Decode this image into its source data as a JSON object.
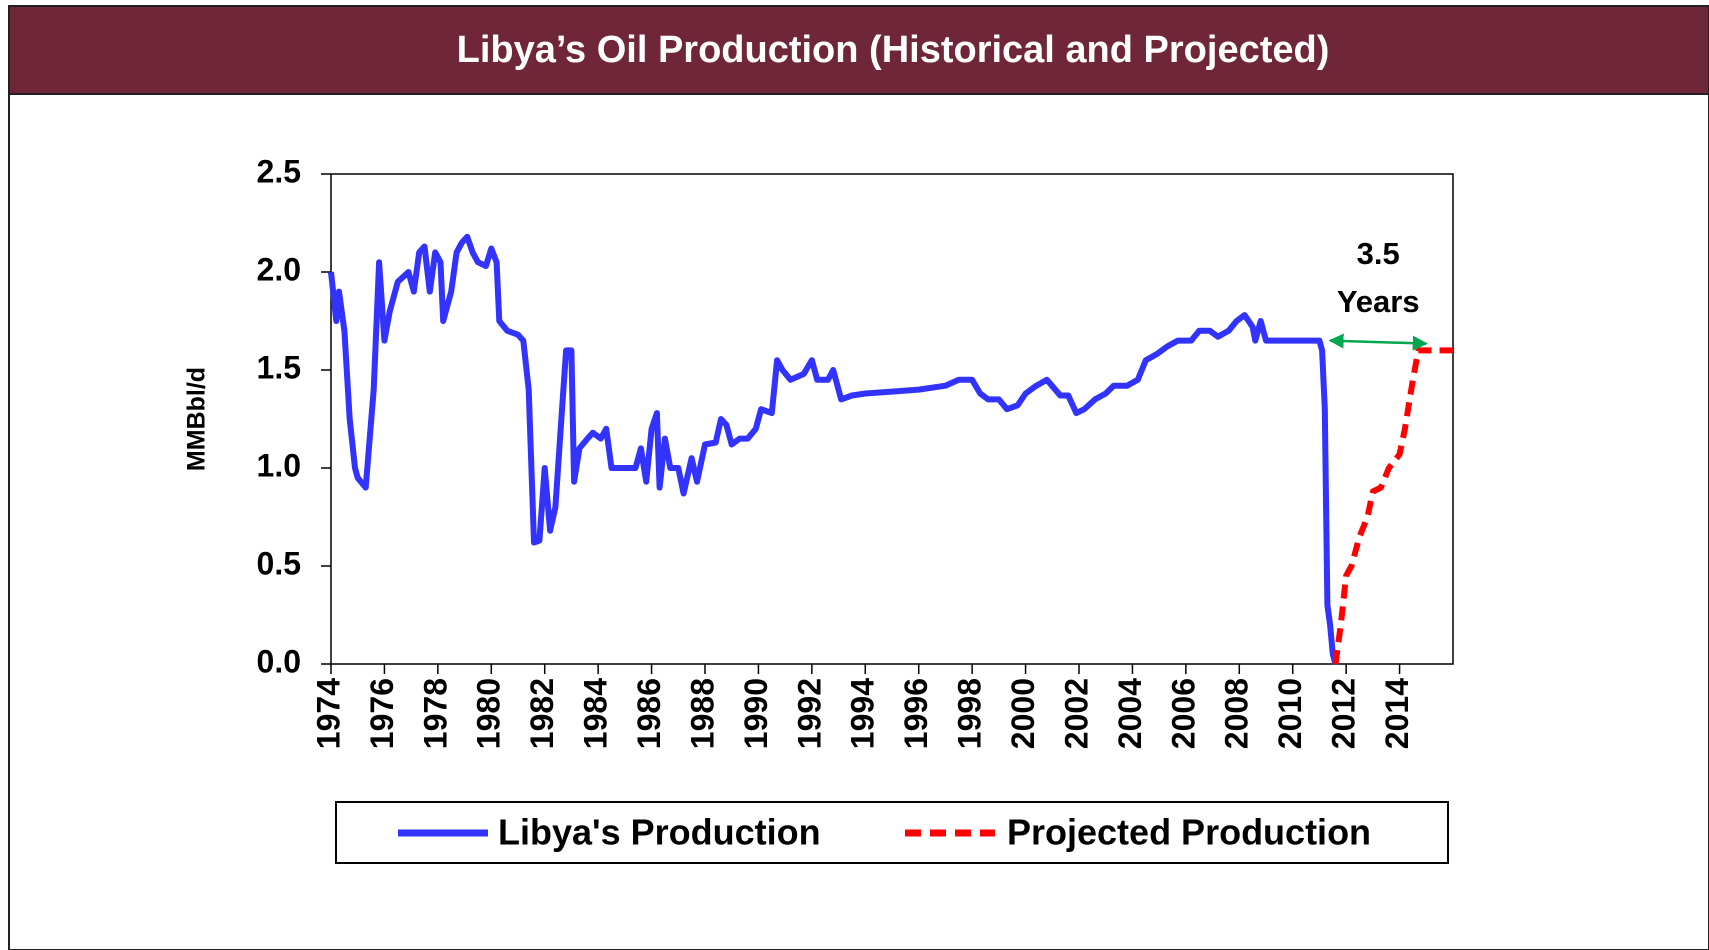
{
  "chart_data": {
    "type": "line",
    "title": "Libya’s Oil Production (Historical and Projected)",
    "y_label": "MMBbl/d",
    "xlim": [
      1974,
      2016
    ],
    "xticks": [
      1974,
      1976,
      1978,
      1980,
      1982,
      1984,
      1986,
      1988,
      1990,
      1992,
      1994,
      1996,
      1998,
      2000,
      2002,
      2004,
      2006,
      2008,
      2010,
      2012,
      2014
    ],
    "ylim": [
      0,
      2.5
    ],
    "yticks": [
      {
        "value": 0,
        "label": "0.0"
      },
      0.5,
      {
        "value": 1,
        "label": "1.0"
      },
      1.5,
      {
        "value": 2,
        "label": "2.0"
      },
      2.5
    ],
    "grid": false,
    "annotation": {
      "lines": [
        "3.5",
        "Years"
      ],
      "x": [
        2011.4,
        2015.0
      ],
      "y": 1.65,
      "color": "#00a650"
    },
    "series": [
      {
        "name": "Libya's Production",
        "color": "#3333ff",
        "dashed": false,
        "x": [
          1974.0,
          1974.2,
          1974.3,
          1974.5,
          1974.7,
          1974.9,
          1975.0,
          1975.3,
          1975.6,
          1975.8,
          1976.0,
          1976.2,
          1976.5,
          1976.9,
          1977.1,
          1977.3,
          1977.5,
          1977.7,
          1977.9,
          1978.1,
          1978.2,
          1978.5,
          1978.7,
          1978.9,
          1979.1,
          1979.3,
          1979.5,
          1979.8,
          1980.0,
          1980.2,
          1980.3,
          1980.6,
          1981.0,
          1981.2,
          1981.4,
          1981.6,
          1981.8,
          1982.0,
          1982.2,
          1982.4,
          1982.6,
          1982.8,
          1983.0,
          1983.1,
          1983.3,
          1983.6,
          1983.8,
          1984.1,
          1984.3,
          1984.5,
          1985.0,
          1985.4,
          1985.6,
          1985.8,
          1986.0,
          1986.2,
          1986.3,
          1986.5,
          1986.7,
          1987.0,
          1987.2,
          1987.5,
          1987.7,
          1988.0,
          1988.4,
          1988.6,
          1988.8,
          1989.0,
          1989.3,
          1989.6,
          1989.9,
          1990.1,
          1990.5,
          1990.7,
          1990.9,
          1991.2,
          1991.7,
          1992.0,
          1992.2,
          1992.6,
          1992.8,
          1993.1,
          1993.5,
          1994.0,
          1995.0,
          1996.0,
          1997.0,
          1997.5,
          1998.0,
          1998.3,
          1998.6,
          1999.0,
          1999.3,
          1999.7,
          2000.0,
          2000.4,
          2000.8,
          2001.3,
          2001.6,
          2001.9,
          2002.2,
          2002.6,
          2003.0,
          2003.3,
          2003.8,
          2004.2,
          2004.5,
          2004.9,
          2005.3,
          2005.7,
          2006.2,
          2006.5,
          2006.9,
          2007.2,
          2007.6,
          2007.9,
          2008.2,
          2008.5,
          2008.6,
          2008.8,
          2009.0,
          2010.0,
          2011.0,
          2011.1,
          2011.2,
          2011.3,
          2011.4,
          2011.5,
          2011.6
        ],
        "values": [
          2.0,
          1.75,
          1.9,
          1.7,
          1.25,
          1.0,
          0.95,
          0.9,
          1.4,
          2.05,
          1.65,
          1.8,
          1.95,
          2.0,
          1.9,
          2.1,
          2.13,
          1.9,
          2.1,
          2.05,
          1.75,
          1.9,
          2.1,
          2.15,
          2.18,
          2.1,
          2.05,
          2.03,
          2.12,
          2.05,
          1.75,
          1.7,
          1.68,
          1.65,
          1.4,
          0.62,
          0.63,
          1.0,
          0.68,
          0.8,
          1.2,
          1.6,
          1.6,
          0.93,
          1.1,
          1.15,
          1.18,
          1.15,
          1.2,
          1.0,
          1.0,
          1.0,
          1.1,
          0.93,
          1.2,
          1.28,
          0.9,
          1.15,
          1.0,
          1.0,
          0.87,
          1.05,
          0.93,
          1.12,
          1.13,
          1.25,
          1.22,
          1.12,
          1.15,
          1.15,
          1.2,
          1.3,
          1.28,
          1.55,
          1.5,
          1.45,
          1.48,
          1.55,
          1.45,
          1.45,
          1.5,
          1.35,
          1.37,
          1.38,
          1.39,
          1.4,
          1.42,
          1.45,
          1.45,
          1.38,
          1.35,
          1.35,
          1.3,
          1.32,
          1.38,
          1.42,
          1.45,
          1.37,
          1.37,
          1.28,
          1.3,
          1.35,
          1.38,
          1.42,
          1.42,
          1.45,
          1.55,
          1.58,
          1.62,
          1.65,
          1.65,
          1.7,
          1.7,
          1.67,
          1.7,
          1.75,
          1.78,
          1.72,
          1.65,
          1.75,
          1.65,
          1.65,
          1.65,
          1.6,
          1.3,
          0.3,
          0.2,
          0.05,
          0.0
        ]
      },
      {
        "name": "Projected Production",
        "color": "#ff0000",
        "dashed": true,
        "x": [
          2011.6,
          2011.8,
          2012.0,
          2012.2,
          2012.5,
          2012.8,
          2013.0,
          2013.3,
          2013.6,
          2014.0,
          2014.2,
          2014.5,
          2014.7,
          2015.0,
          2016.0
        ],
        "values": [
          0.0,
          0.2,
          0.45,
          0.5,
          0.65,
          0.75,
          0.88,
          0.9,
          1.0,
          1.07,
          1.2,
          1.45,
          1.6,
          1.6,
          1.6
        ]
      }
    ]
  }
}
